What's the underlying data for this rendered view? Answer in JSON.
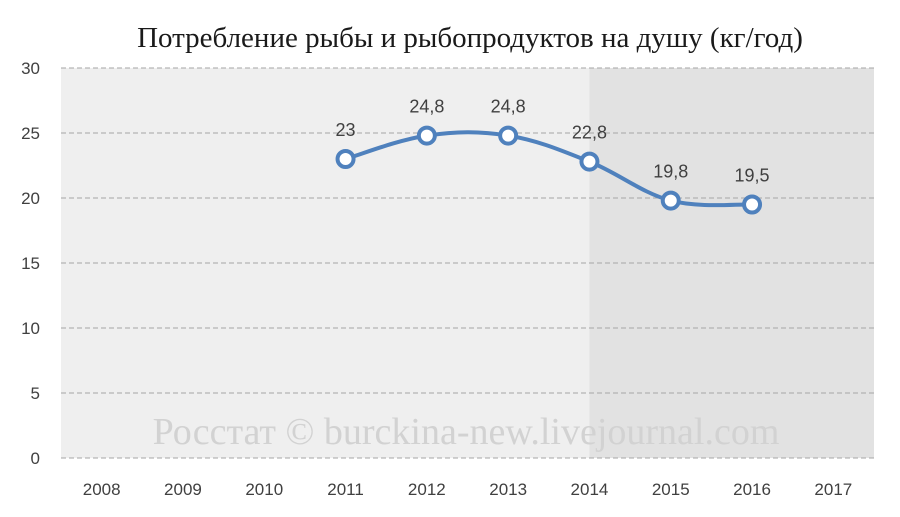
{
  "chart_data": {
    "type": "line",
    "title": "Потребление рыбы и рыбопродуктов на душу (кг/год)",
    "categories": [
      "2008",
      "2009",
      "2010",
      "2011",
      "2012",
      "2013",
      "2014",
      "2015",
      "2016",
      "2017"
    ],
    "series": [
      {
        "values": [
          null,
          null,
          null,
          23,
          24.8,
          24.8,
          22.8,
          19.8,
          19.5,
          null
        ],
        "labels": [
          null,
          null,
          null,
          "23",
          "24,8",
          "24,8",
          "22,8",
          "19,8",
          "19,5",
          null
        ]
      }
    ],
    "ylim": [
      0,
      30
    ],
    "yticks": [
      0,
      5,
      10,
      15,
      20,
      25,
      30
    ],
    "grid": true,
    "highlight_from_category": "2014",
    "colors": {
      "line": "#4f81bd",
      "plot_background": "#efefef",
      "highlight_background": "#e2e2e2",
      "grid": "#a6a6a6"
    }
  },
  "watermark": "Росстат © burckina-new.livejournal.com"
}
